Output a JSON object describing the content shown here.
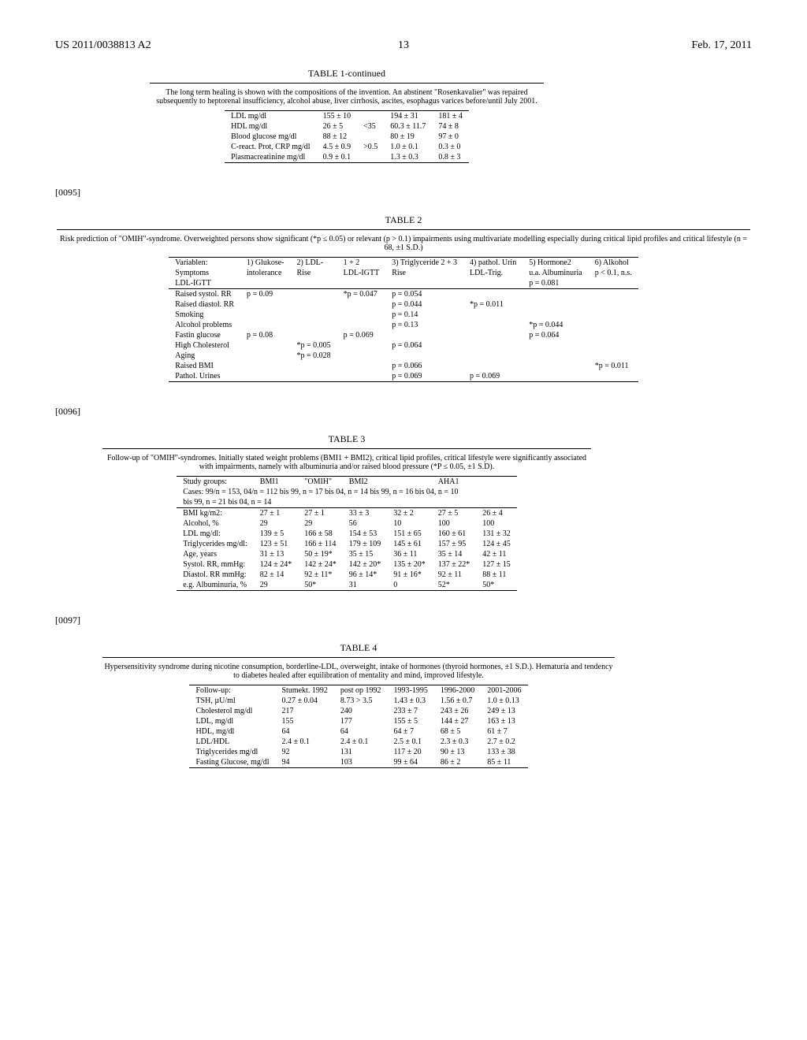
{
  "header": {
    "docnum": "US 2011/0038813 A2",
    "pagenum": "13",
    "date": "Feb. 17, 2011"
  },
  "para": {
    "p95": "[0095]",
    "p96": "[0096]",
    "p97": "[0097]"
  },
  "table1": {
    "title": "TABLE 1-continued",
    "caption": "The long term healing is shown with the compositions of the invention. An abstinent \"Rosenkavalier\" was repaired subsequently to heptorenal insufficiency, alcohol abuse, liver cirrhosis, ascites, esophagus varices before/until July 2001.",
    "rows": [
      [
        "LDL mg/dl",
        "155 ± 10",
        "",
        "194 ± 31",
        "181 ± 4"
      ],
      [
        "HDL mg/dl",
        "26 ± 5",
        "<35",
        "60.3 ± 11.7",
        "74 ± 8"
      ],
      [
        "Blood glucose mg/dl",
        "88 ± 12",
        "",
        "80 ± 19",
        "97 ± 0"
      ],
      [
        "C-react. Prot, CRP mg/dl",
        "4.5 ± 0.9",
        ">0.5",
        "1.0 ± 0.1",
        "0.3 ± 0"
      ],
      [
        "Plasmacreatinine mg/dl",
        "0.9 ± 0.1",
        "",
        "1.3 ± 0.3",
        "0.8 ± 3"
      ]
    ]
  },
  "table2": {
    "title": "TABLE 2",
    "caption": "Risk prediction of \"OMIH\"-syndrome. Overweighted persons show significant (*p ≤ 0.05) or relevant (p > 0.1) impairments using multivariate modelling especially during critical lipid profiles and critical lifestyle (n = 68, ±1 S.D.)",
    "head": [
      [
        "Variablen:",
        "1) Glukose-",
        "2) LDL-",
        "1 + 2",
        "3) Triglyceride 2 + 3",
        "4) pathol. Urin",
        "5) Hormone2",
        "6) Alkohol"
      ],
      [
        "Symptoms",
        "intolerance",
        "Rise",
        "LDL-IGTT",
        "Rise",
        "LDL-Trig.",
        "u.a. Albuminuria",
        "p < 0.1, n.s."
      ],
      [
        "LDL-IGTT",
        "",
        "",
        "",
        "",
        "",
        "p = 0.081",
        ""
      ]
    ],
    "rows": [
      [
        "Raised systol. RR",
        "p = 0.09",
        "",
        "*p = 0.047",
        "p = 0.054",
        "",
        "",
        ""
      ],
      [
        "Raised diastol. RR",
        "",
        "",
        "",
        "p = 0.044",
        "*p = 0.011",
        "",
        ""
      ],
      [
        "Smoking",
        "",
        "",
        "",
        "p = 0.14",
        "",
        "",
        ""
      ],
      [
        "Alcohol problems",
        "",
        "",
        "",
        "p = 0.13",
        "",
        "*p = 0.044",
        ""
      ],
      [
        "Fastin glucose",
        "p = 0.08",
        "",
        "p = 0.069",
        "",
        "",
        "p = 0.064",
        ""
      ],
      [
        "High Cholesterol",
        "",
        "*p = 0.005",
        "",
        "p = 0.064",
        "",
        "",
        ""
      ],
      [
        "Aging",
        "",
        "*p = 0.028",
        "",
        "",
        "",
        "",
        ""
      ],
      [
        "Raised BMI",
        "",
        "",
        "",
        "p = 0.066",
        "",
        "",
        "*p = 0.011"
      ],
      [
        "Pathol. Urines",
        "",
        "",
        "",
        "p = 0.069",
        "p = 0.069",
        "",
        ""
      ]
    ]
  },
  "table3": {
    "title": "TABLE 3",
    "caption": "Follow-up of \"OMIH\"-syndromes. Initially stated weight problems (BMI1 + BMI2), critical lipid profiles, critical lifestyle were significantly associated with impairments, namely with albuminuria and/or raised blood pressure (*P ≤ 0.05, ±1 S.D).",
    "head1": [
      "Study groups:",
      "BMI1",
      "\"OMIH\"",
      "BMI2",
      "",
      "AHA1",
      ""
    ],
    "head2": "Cases: 99/n = 153, 04/n = 112 bis 99, n = 17 bis 04, n = 14 bis 99, n = 16 bis 04, n = 10",
    "head3": "bis 99, n = 21 bis 04, n = 14",
    "rows": [
      [
        "BMI kg/m2:",
        "27 ± 1",
        "27 ± 1",
        "33 ± 3",
        "32 ± 2",
        "27 ± 5",
        "26 ± 4"
      ],
      [
        "Alcohol, %",
        "29",
        "29",
        "56",
        "10",
        "100",
        "100"
      ],
      [
        "LDL mg/dl:",
        "139 ± 5",
        "166 ± 58",
        "154 ± 53",
        "151 ± 65",
        "160 ± 61",
        "131 ± 32"
      ],
      [
        "Triglycerides mg/dl:",
        "123 ± 51",
        "166 ± 114",
        "179 ± 109",
        "145 ± 61",
        "157 ± 95",
        "124 ± 45"
      ],
      [
        "Age, years",
        "31 ± 13",
        "50 ± 19*",
        "35 ± 15",
        "36 ± 11",
        "35 ± 14",
        "42 ± 11"
      ],
      [
        "Systol. RR, mmHg:",
        "124 ± 24*",
        "142 ± 24*",
        "142 ± 20*",
        "135 ± 20*",
        "137 ± 22*",
        "127 ± 15"
      ],
      [
        "Diastol. RR mmHg:",
        "82 ± 14",
        "92 ± 11*",
        "96 ± 14*",
        "91 ± 16*",
        "92 ± 11",
        "88 ± 11"
      ],
      [
        "e.g. Albuminuria, %",
        "29",
        "50*",
        "31",
        "0",
        "52*",
        "50*"
      ]
    ]
  },
  "table4": {
    "title": "TABLE 4",
    "caption": "Hypersensitivity syndrome during nicotine consumption, borderline-LDL, overweight, intake of hormones (thyroid hormones, ±1 S.D.). Hematuria and tendency to diabetes healed after equilibration of mentality and mind, improved lifestyle.",
    "rows": [
      [
        "Follow-up:",
        "Stumekt. 1992",
        "post op 1992",
        "1993-1995",
        "1996-2000",
        "2001-2006"
      ],
      [
        "TSH, µU/ml",
        "0.27 ± 0.04",
        "8.73 > 3.5",
        "1.43 ± 0.3",
        "1.56 ± 0.7",
        "1.0 ± 0.13"
      ],
      [
        "Cholesterol mg/dl",
        "217",
        "240",
        "233 ± 7",
        "243 ± 26",
        "249 ± 13"
      ],
      [
        "LDL, mg/dl",
        "155",
        "177",
        "155 ± 5",
        "144 ± 27",
        "163 ± 13"
      ],
      [
        "HDL, mg/dl",
        "64",
        "64",
        "64 ± 7",
        "68 ± 5",
        "61 ± 7"
      ],
      [
        "LDL/HDL",
        "2.4 ± 0.1",
        "2.4 ± 0.1",
        "2.5 ± 0.1",
        "2.3 ± 0.3",
        "2.7 ± 0.2"
      ],
      [
        "Triglycerides mg/dl",
        "92",
        "131",
        "117 ± 20",
        "90 ± 13",
        "133 ± 38"
      ],
      [
        "Fasting Glucose, mg/dl",
        "94",
        "103",
        "99 ± 64",
        "86 ± 2",
        "85 ± 11"
      ]
    ]
  }
}
